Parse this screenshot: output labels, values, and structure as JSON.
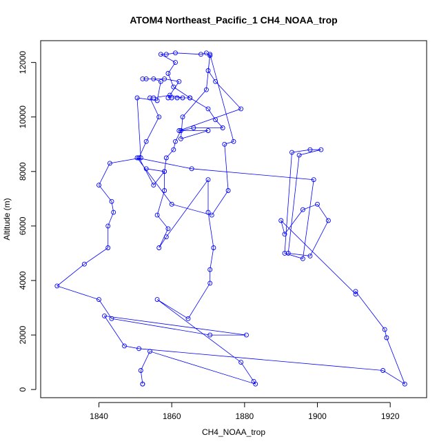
{
  "chart_data": {
    "type": "line",
    "title": "ATOM4 Northeast_Pacific_1 CH4_NOAA_trop",
    "xlabel": "CH4_NOAA_trop",
    "ylabel": "Altitude (m)",
    "xlim": [
      1824,
      1930
    ],
    "ylim": [
      -300,
      12800
    ],
    "x_ticks": [
      1840,
      1860,
      1880,
      1900,
      1920
    ],
    "y_ticks": [
      0,
      2000,
      4000,
      6000,
      8000,
      10000,
      12000
    ],
    "grid": false,
    "markers": "open-circle",
    "series": [
      {
        "color": "#0000ff",
        "points": [
          [
            1852,
            200
          ],
          [
            1852,
            200
          ],
          [
            1851.5,
            700
          ],
          [
            1854,
            1400
          ],
          [
            1883,
            200
          ],
          [
            1882.5,
            300
          ],
          [
            1879,
            1000
          ],
          [
            1856,
            3300
          ],
          [
            1864.5,
            2600
          ],
          [
            1870.5,
            3900
          ],
          [
            1870.5,
            4400
          ],
          [
            1871.5,
            5200
          ],
          [
            1870,
            6500
          ],
          [
            1870,
            7700
          ],
          [
            1858.5,
            5600
          ],
          [
            1856.5,
            5200
          ],
          [
            1859,
            5900
          ],
          [
            1856,
            6400
          ],
          [
            1858,
            7300
          ],
          [
            1858,
            8000
          ],
          [
            1858.5,
            8500
          ],
          [
            1860.5,
            8800
          ],
          [
            1861,
            9100
          ],
          [
            1862.5,
            9500
          ],
          [
            1866,
            9600
          ],
          [
            1874,
            9600
          ],
          [
            1872,
            9900
          ],
          [
            1870,
            10300
          ],
          [
            1865,
            10700
          ],
          [
            1860.5,
            11100
          ],
          [
            1859,
            11600
          ],
          [
            1861,
            12000
          ],
          [
            1857,
            12300
          ],
          [
            1858.5,
            12300
          ],
          [
            1861,
            12350
          ],
          [
            1868,
            12300
          ],
          [
            1869.5,
            12350
          ],
          [
            1870.5,
            12250
          ],
          [
            1870,
            11700
          ],
          [
            1872,
            11300
          ],
          [
            1879,
            10300
          ],
          [
            1862,
            9500
          ],
          [
            1870,
            9500
          ],
          [
            1862.5,
            9200
          ],
          [
            1863,
            10000
          ],
          [
            1869.5,
            11000
          ],
          [
            1870.5,
            12300
          ],
          [
            1877,
            9100
          ],
          [
            1874.5,
            9000
          ],
          [
            1875.5,
            7300
          ],
          [
            1871,
            6400
          ],
          [
            1860,
            6800
          ],
          [
            1850.5,
            8500
          ],
          [
            1865.5,
            8100
          ],
          [
            1899,
            7700
          ],
          [
            1896,
            4800
          ],
          [
            1891,
            5000
          ],
          [
            1893,
            8700
          ],
          [
            1898,
            8800
          ],
          [
            1901,
            8800
          ],
          [
            1895,
            8600
          ],
          [
            1892,
            5000
          ],
          [
            1898,
            4900
          ],
          [
            1903,
            6200
          ],
          [
            1900,
            6800
          ],
          [
            1896,
            6600
          ],
          [
            1891,
            5700
          ],
          [
            1890,
            6200
          ],
          [
            1910.5,
            3500
          ],
          [
            1910.5,
            3600
          ],
          [
            1918.5,
            2200
          ],
          [
            1919,
            1900
          ],
          [
            1924,
            200
          ],
          [
            1918,
            700
          ],
          [
            1851,
            1500
          ],
          [
            1847,
            1600
          ],
          [
            1841.5,
            2700
          ],
          [
            1880.5,
            2000
          ],
          [
            1870.5,
            2000
          ],
          [
            1843.5,
            2600
          ],
          [
            1840,
            3300
          ],
          [
            1828.5,
            3800
          ],
          [
            1836,
            4600
          ],
          [
            1842.5,
            5200
          ],
          [
            1842.5,
            6000
          ],
          [
            1844,
            6500
          ],
          [
            1843.5,
            6900
          ],
          [
            1840,
            7500
          ],
          [
            1843,
            8300
          ],
          [
            1851.5,
            8500
          ],
          [
            1850.5,
            10700
          ],
          [
            1856,
            10600
          ],
          [
            1857,
            11300
          ],
          [
            1855,
            11400
          ],
          [
            1853,
            11400
          ],
          [
            1852,
            11400
          ],
          [
            1858,
            11400
          ],
          [
            1862,
            11300
          ],
          [
            1859,
            10700
          ],
          [
            1860,
            10700
          ],
          [
            1861.5,
            10700
          ],
          [
            1865,
            10700
          ],
          [
            1863,
            10700
          ],
          [
            1859.5,
            10800
          ],
          [
            1855,
            10700
          ],
          [
            1854,
            10700
          ],
          [
            1856.5,
            10000
          ],
          [
            1853,
            9100
          ],
          [
            1851,
            8500
          ],
          [
            1855,
            7500
          ],
          [
            1858,
            8000
          ],
          [
            1853,
            8100
          ]
        ]
      }
    ]
  }
}
